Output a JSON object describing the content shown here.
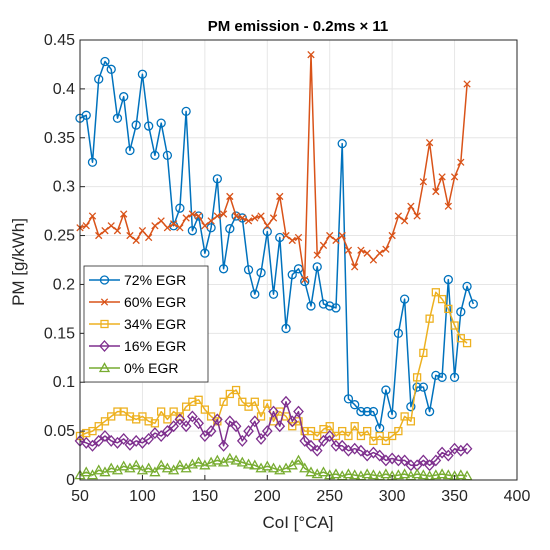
{
  "chart_data": {
    "type": "line",
    "title": "PM emission - 0.2ms × 11",
    "xlabel": "CoI [°CA]",
    "ylabel": "PM [g/kWh]",
    "xlim": [
      50,
      400
    ],
    "ylim": [
      0,
      0.45
    ],
    "xticks": [
      "50",
      "100",
      "150",
      "200",
      "250",
      "300",
      "350",
      "400"
    ],
    "yticks": [
      "0",
      "0.05",
      "0.1",
      "0.15",
      "0.2",
      "0.25",
      "0.3",
      "0.35",
      "0.4",
      "0.45"
    ],
    "grid": true,
    "legend_position": "middle-left",
    "series": [
      {
        "name": "72% EGR",
        "color": "#0072BD",
        "marker": "circle",
        "x": [
          50,
          55,
          60,
          65,
          70,
          75,
          80,
          85,
          90,
          95,
          100,
          105,
          110,
          115,
          120,
          125,
          130,
          135,
          140,
          145,
          150,
          155,
          160,
          165,
          170,
          175,
          180,
          185,
          190,
          195,
          200,
          205,
          210,
          215,
          220,
          225,
          230,
          235,
          240,
          245,
          250,
          255,
          260,
          265,
          270,
          275,
          280,
          285,
          290,
          295,
          300,
          305,
          310,
          315,
          320,
          325,
          330,
          335,
          340,
          345,
          350,
          355,
          360,
          365
        ],
        "y": [
          0.37,
          0.373,
          0.325,
          0.41,
          0.428,
          0.42,
          0.37,
          0.392,
          0.337,
          0.363,
          0.415,
          0.362,
          0.332,
          0.365,
          0.332,
          0.26,
          0.278,
          0.377,
          0.255,
          0.27,
          0.232,
          0.258,
          0.308,
          0.216,
          0.257,
          0.27,
          0.268,
          0.215,
          0.19,
          0.212,
          0.254,
          0.19,
          0.248,
          0.155,
          0.21,
          0.216,
          0.203,
          0.178,
          0.218,
          0.18,
          0.178,
          0.176,
          0.344,
          0.083,
          0.077,
          0.07,
          0.07,
          0.07,
          0.053,
          0.092,
          0.067,
          0.15,
          0.185,
          0.075,
          0.095,
          0.095,
          0.07,
          0.107,
          0.105,
          0.205,
          0.105,
          0.172,
          0.198,
          0.18
        ]
      },
      {
        "name": "60% EGR",
        "color": "#D95319",
        "marker": "x",
        "x": [
          50,
          55,
          60,
          65,
          70,
          75,
          80,
          85,
          90,
          95,
          100,
          105,
          110,
          115,
          120,
          125,
          130,
          135,
          140,
          145,
          150,
          155,
          160,
          165,
          170,
          175,
          180,
          185,
          190,
          195,
          200,
          205,
          210,
          215,
          220,
          225,
          230,
          235,
          240,
          245,
          250,
          255,
          260,
          265,
          270,
          275,
          280,
          285,
          290,
          295,
          300,
          305,
          310,
          315,
          320,
          325,
          330,
          335,
          340,
          345,
          350,
          355,
          360
        ],
        "y": [
          0.258,
          0.26,
          0.27,
          0.25,
          0.255,
          0.26,
          0.255,
          0.272,
          0.25,
          0.245,
          0.255,
          0.248,
          0.26,
          0.265,
          0.258,
          0.262,
          0.258,
          0.268,
          0.272,
          0.27,
          0.26,
          0.265,
          0.27,
          0.272,
          0.29,
          0.27,
          0.268,
          0.265,
          0.268,
          0.27,
          0.26,
          0.268,
          0.29,
          0.25,
          0.245,
          0.248,
          0.205,
          0.435,
          0.23,
          0.24,
          0.25,
          0.245,
          0.25,
          0.235,
          0.218,
          0.235,
          0.232,
          0.225,
          0.232,
          0.236,
          0.25,
          0.27,
          0.265,
          0.28,
          0.27,
          0.305,
          0.345,
          0.295,
          0.31,
          0.28,
          0.31,
          0.325,
          0.405
        ]
      },
      {
        "name": "34% EGR",
        "color": "#EDB120",
        "marker": "square",
        "x": [
          50,
          55,
          60,
          65,
          70,
          75,
          80,
          85,
          90,
          95,
          100,
          105,
          110,
          115,
          120,
          125,
          130,
          135,
          140,
          145,
          150,
          155,
          160,
          165,
          170,
          175,
          180,
          185,
          190,
          195,
          200,
          205,
          210,
          215,
          220,
          225,
          230,
          235,
          240,
          245,
          250,
          255,
          260,
          265,
          270,
          275,
          280,
          285,
          290,
          295,
          300,
          305,
          310,
          315,
          320,
          325,
          330,
          335,
          340,
          345,
          350,
          355,
          360
        ],
        "y": [
          0.045,
          0.048,
          0.05,
          0.055,
          0.06,
          0.065,
          0.07,
          0.07,
          0.065,
          0.062,
          0.065,
          0.06,
          0.058,
          0.07,
          0.062,
          0.07,
          0.065,
          0.075,
          0.08,
          0.082,
          0.072,
          0.065,
          0.06,
          0.08,
          0.088,
          0.092,
          0.08,
          0.075,
          0.08,
          0.065,
          0.078,
          0.06,
          0.07,
          0.065,
          0.055,
          0.06,
          0.05,
          0.05,
          0.045,
          0.052,
          0.055,
          0.045,
          0.05,
          0.045,
          0.055,
          0.045,
          0.05,
          0.04,
          0.045,
          0.04,
          0.045,
          0.05,
          0.065,
          0.06,
          0.105,
          0.13,
          0.165,
          0.192,
          0.185,
          0.175,
          0.158,
          0.145,
          0.14
        ]
      },
      {
        "name": "16% EGR",
        "color": "#7E2F8E",
        "marker": "diamond",
        "x": [
          50,
          55,
          60,
          65,
          70,
          75,
          80,
          85,
          90,
          95,
          100,
          105,
          110,
          115,
          120,
          125,
          130,
          135,
          140,
          145,
          150,
          155,
          160,
          165,
          170,
          175,
          180,
          185,
          190,
          195,
          200,
          205,
          210,
          215,
          220,
          225,
          230,
          235,
          240,
          245,
          250,
          255,
          260,
          265,
          270,
          275,
          280,
          285,
          290,
          295,
          300,
          305,
          310,
          315,
          320,
          325,
          330,
          335,
          340,
          345,
          350,
          355,
          360
        ],
        "y": [
          0.04,
          0.038,
          0.035,
          0.04,
          0.045,
          0.04,
          0.038,
          0.042,
          0.036,
          0.04,
          0.038,
          0.042,
          0.048,
          0.045,
          0.05,
          0.055,
          0.062,
          0.055,
          0.065,
          0.058,
          0.045,
          0.05,
          0.062,
          0.035,
          0.06,
          0.055,
          0.04,
          0.05,
          0.06,
          0.042,
          0.05,
          0.07,
          0.055,
          0.08,
          0.06,
          0.07,
          0.04,
          0.035,
          0.03,
          0.04,
          0.045,
          0.035,
          0.035,
          0.03,
          0.032,
          0.03,
          0.025,
          0.028,
          0.025,
          0.02,
          0.022,
          0.02,
          0.02,
          0.015,
          0.015,
          0.02,
          0.015,
          0.02,
          0.028,
          0.025,
          0.032,
          0.03,
          0.032
        ]
      },
      {
        "name": "0% EGR",
        "color": "#77AC30",
        "marker": "triangle",
        "x": [
          50,
          55,
          60,
          65,
          70,
          75,
          80,
          85,
          90,
          95,
          100,
          105,
          110,
          115,
          120,
          125,
          130,
          135,
          140,
          145,
          150,
          155,
          160,
          165,
          170,
          175,
          180,
          185,
          190,
          195,
          200,
          205,
          210,
          215,
          220,
          225,
          230,
          235,
          240,
          245,
          250,
          255,
          260,
          265,
          270,
          275,
          280,
          285,
          290,
          295,
          300,
          305,
          310,
          315,
          320,
          325,
          330,
          335,
          340,
          345,
          350,
          355,
          360
        ],
        "y": [
          0.005,
          0.008,
          0.005,
          0.01,
          0.008,
          0.012,
          0.01,
          0.014,
          0.012,
          0.015,
          0.01,
          0.012,
          0.008,
          0.015,
          0.012,
          0.01,
          0.015,
          0.012,
          0.016,
          0.018,
          0.015,
          0.018,
          0.02,
          0.018,
          0.022,
          0.02,
          0.018,
          0.016,
          0.015,
          0.012,
          0.014,
          0.012,
          0.01,
          0.012,
          0.015,
          0.02,
          0.012,
          0.008,
          0.006,
          0.008,
          0.005,
          0.006,
          0.004,
          0.006,
          0.005,
          0.004,
          0.006,
          0.005,
          0.004,
          0.006,
          0.004,
          0.005,
          0.006,
          0.004,
          0.006,
          0.005,
          0.004,
          0.005,
          0.006,
          0.005,
          0.004,
          0.005,
          0.004
        ]
      }
    ]
  }
}
